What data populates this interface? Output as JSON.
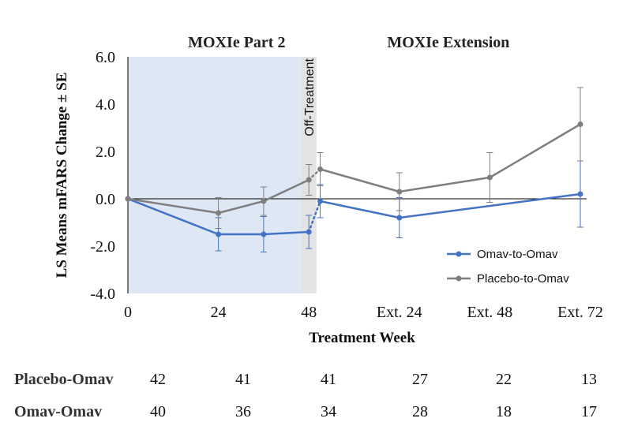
{
  "chart_data": {
    "type": "line",
    "phases": [
      {
        "name": "MOXIe Part 2",
        "x_start": 0,
        "x_end": 46
      },
      {
        "name": "MOXIe Extension",
        "x_start": 50,
        "x_end": 120
      }
    ],
    "off_treatment": {
      "label": "Off-Treatment",
      "x_start": 46,
      "x_end": 50
    },
    "ylabel": "LS Means mFARS Change ± SE",
    "xlabel": "Treatment Week",
    "ylim": [
      -4.0,
      6.0
    ],
    "xlim": [
      0,
      120
    ],
    "yticks": [
      {
        "value": 6.0,
        "label": "6.0"
      },
      {
        "value": 4.0,
        "label": "4.0"
      },
      {
        "value": 2.0,
        "label": "2.0"
      },
      {
        "value": 0.0,
        "label": "0.0"
      },
      {
        "value": -2.0,
        "label": "-2.0"
      },
      {
        "value": -4.0,
        "label": "-4.0"
      }
    ],
    "xticks": [
      {
        "value": 0,
        "label": "0"
      },
      {
        "value": 24,
        "label": "24"
      },
      {
        "value": 48,
        "label": "48"
      },
      {
        "value": 72,
        "label": "Ext. 24"
      },
      {
        "value": 96,
        "label": "Ext. 48"
      },
      {
        "value": 120,
        "label": "Ext. 72"
      }
    ],
    "series": [
      {
        "name": "Omav-to-Omav",
        "color": "#4472C4",
        "points": [
          {
            "x": 0,
            "y": 0.0,
            "se": 0.0
          },
          {
            "x": 24,
            "y": -1.5,
            "se": 0.7
          },
          {
            "x": 36,
            "y": -1.5,
            "se": 0.75
          },
          {
            "x": 48,
            "y": -1.4,
            "se": 0.7
          },
          {
            "x": 51,
            "y": -0.1,
            "se": 0.7
          },
          {
            "x": 72,
            "y": -0.8,
            "se": 0.85
          },
          {
            "x": 120,
            "y": 0.2,
            "se": 1.4
          }
        ],
        "dotted_segments": [
          [
            3,
            4
          ]
        ]
      },
      {
        "name": "Placebo-to-Omav",
        "color": "#7F7F7F",
        "points": [
          {
            "x": 0,
            "y": 0.0,
            "se": 0.0
          },
          {
            "x": 24,
            "y": -0.6,
            "se": 0.65
          },
          {
            "x": 36,
            "y": -0.1,
            "se": 0.6
          },
          {
            "x": 48,
            "y": 0.8,
            "se": 0.65
          },
          {
            "x": 51,
            "y": 1.25,
            "se": 0.7
          },
          {
            "x": 72,
            "y": 0.3,
            "se": 0.8
          },
          {
            "x": 96,
            "y": 0.9,
            "se": 1.05
          },
          {
            "x": 120,
            "y": 3.15,
            "se": 1.55
          }
        ],
        "dotted_segments": [
          [
            3,
            4
          ]
        ]
      }
    ],
    "legend_position": "bottom-right"
  },
  "n_table": {
    "rows": [
      {
        "name": "Placebo-Omav",
        "values": [
          "42",
          "41",
          "41",
          "27",
          "22",
          "13"
        ]
      },
      {
        "name": "Omav-Omav",
        "values": [
          "40",
          "36",
          "34",
          "28",
          "18",
          "17"
        ]
      }
    ]
  }
}
